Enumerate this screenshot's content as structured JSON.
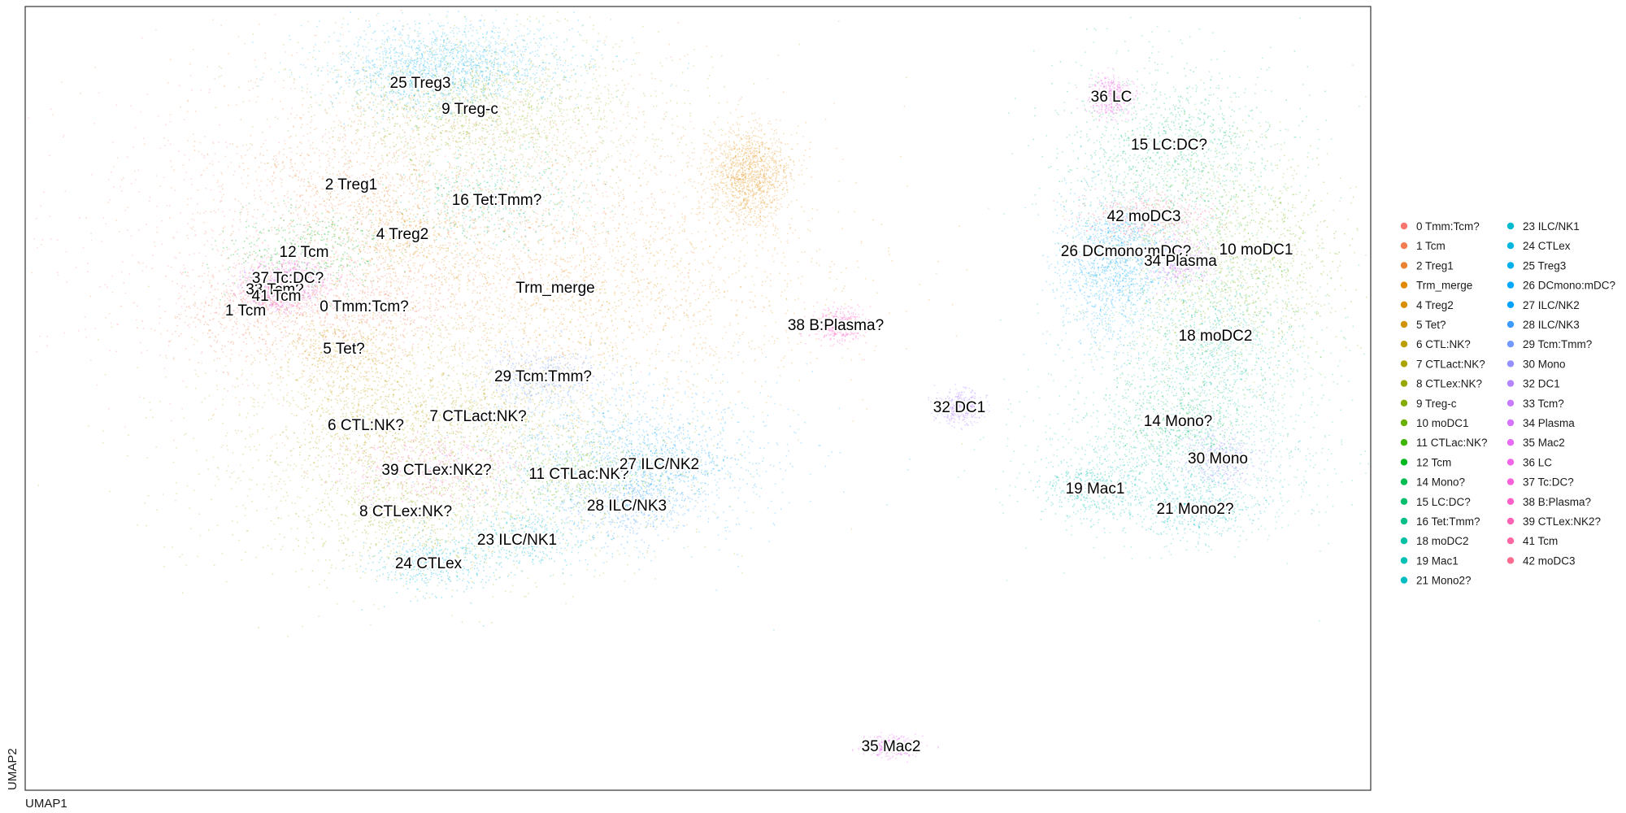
{
  "chart_data": {
    "type": "scatter",
    "title": "",
    "xlabel": "UMAP1",
    "ylabel": "UMAP2",
    "grid": false,
    "legend_position": "right",
    "clusters": [
      {
        "name": "0 Tmm:Tcm?",
        "color": "#F8766D"
      },
      {
        "name": "1 Tcm",
        "color": "#F27D52"
      },
      {
        "name": "2 Treg1",
        "color": "#EA8331"
      },
      {
        "name": "Trm_merge",
        "color": "#E18A00"
      },
      {
        "name": "4 Treg2",
        "color": "#D89000"
      },
      {
        "name": "5 Tet?",
        "color": "#CF9400"
      },
      {
        "name": "6 CTL:NK?",
        "color": "#BB9D00"
      },
      {
        "name": "7 CTLact:NK?",
        "color": "#ABA300"
      },
      {
        "name": "8 CTLex:NK?",
        "color": "#97A900"
      },
      {
        "name": "9 Treg-c",
        "color": "#85AD00"
      },
      {
        "name": "10 moDC1",
        "color": "#68B100"
      },
      {
        "name": "11 CTLac:NK?",
        "color": "#3FB500"
      },
      {
        "name": "12 Tcm",
        "color": "#00B81F"
      },
      {
        "name": "14 Mono?",
        "color": "#00BC51"
      },
      {
        "name": "15 LC:DC?",
        "color": "#00BE6C"
      },
      {
        "name": "16 Tet:Tmm?",
        "color": "#00C087"
      },
      {
        "name": "18 moDC2",
        "color": "#00C0A3"
      },
      {
        "name": "19 Mac1",
        "color": "#00BFB4"
      },
      {
        "name": "21 Mono2?",
        "color": "#00BDC2"
      },
      {
        "name": "23 ILC/NK1",
        "color": "#00BAD0"
      },
      {
        "name": "24 CTLex",
        "color": "#00B6DF"
      },
      {
        "name": "25 Treg3",
        "color": "#00B0EC"
      },
      {
        "name": "26 DCmono:mDC?",
        "color": "#00A9FF"
      },
      {
        "name": "27 ILC/NK2",
        "color": "#00A2FF"
      },
      {
        "name": "28 ILC/NK3",
        "color": "#3D9BFF"
      },
      {
        "name": "29 Tcm:Tmm?",
        "color": "#7399FF"
      },
      {
        "name": "30 Mono",
        "color": "#9590FF"
      },
      {
        "name": "32 DC1",
        "color": "#B385FF"
      },
      {
        "name": "33 Tcm?",
        "color": "#C77CFF"
      },
      {
        "name": "34 Plasma",
        "color": "#D774FD"
      },
      {
        "name": "35 Mac2",
        "color": "#E76BF3"
      },
      {
        "name": "36 LC",
        "color": "#F166E8"
      },
      {
        "name": "37 Tc:DC?",
        "color": "#FA62DB"
      },
      {
        "name": "38 B:Plasma?",
        "color": "#FF61C9"
      },
      {
        "name": "39 CTLex:NK2?",
        "color": "#FF63B6"
      },
      {
        "name": "41 Tcm",
        "color": "#FF67A4"
      },
      {
        "name": "42 moDC3",
        "color": "#FD6C8F"
      }
    ]
  }
}
